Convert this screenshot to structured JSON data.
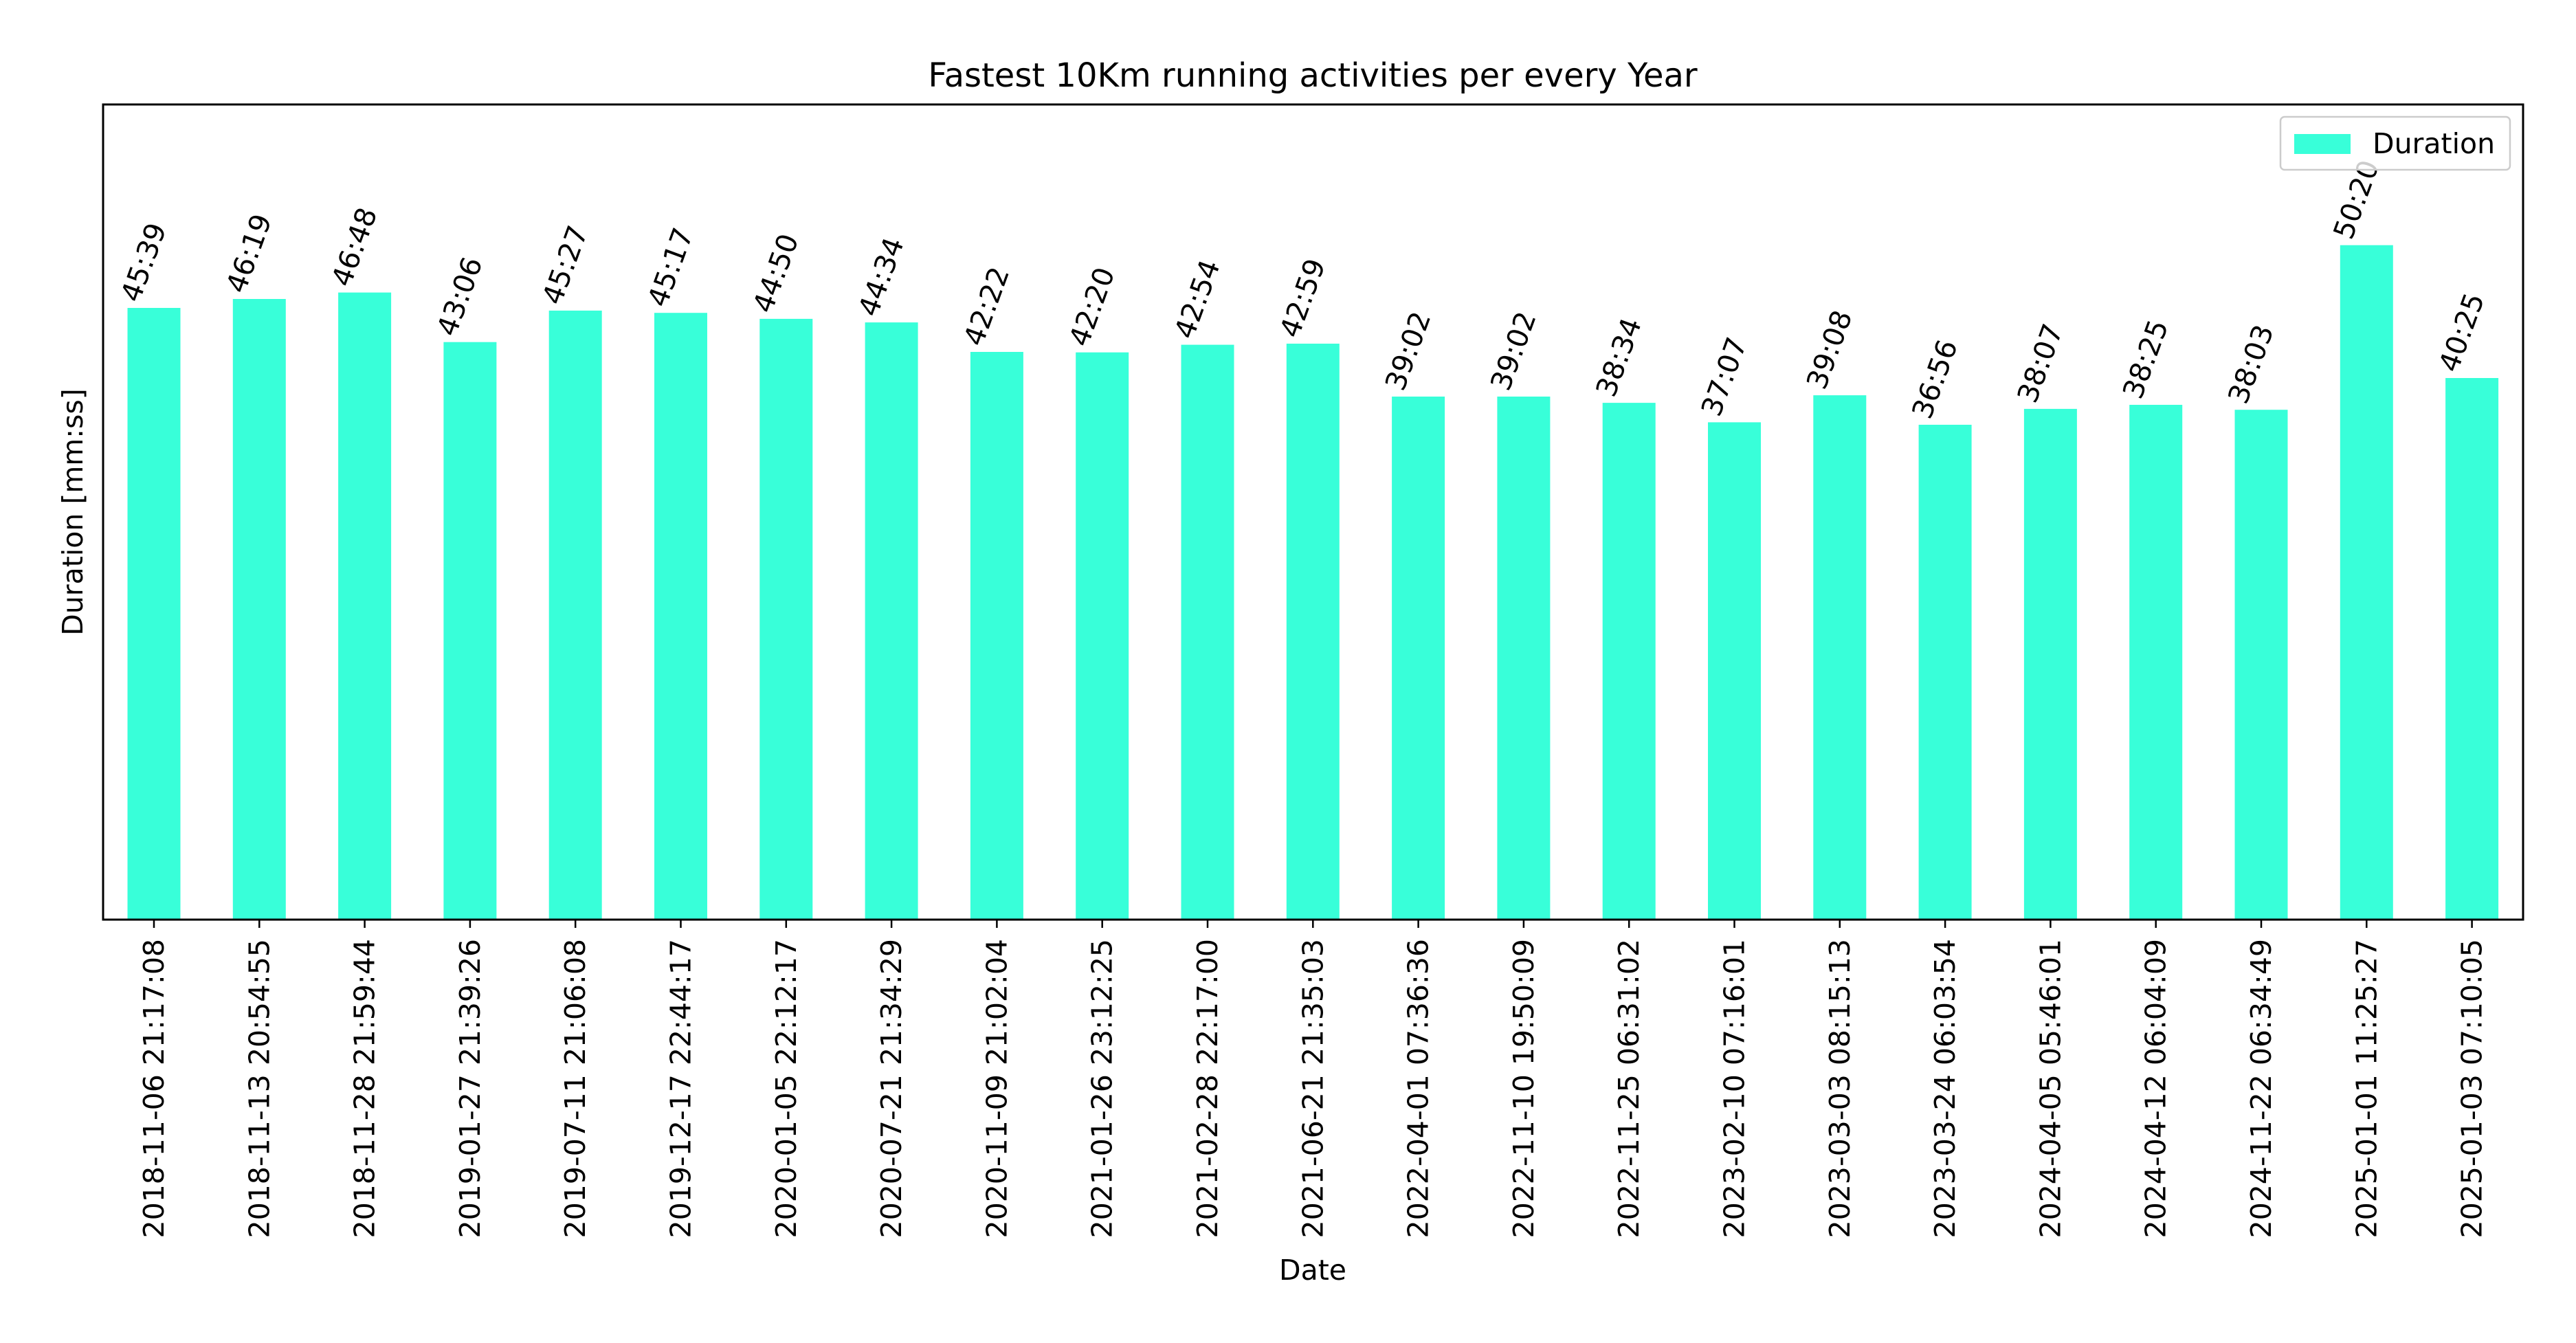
{
  "chart_data": {
    "type": "bar",
    "title": "Fastest 10Km running activities per every Year",
    "xlabel": "Date",
    "ylabel": "Duration [mm:ss]",
    "y_unit": "seconds",
    "ylim": [
      0,
      3650
    ],
    "y_ticks_visible": false,
    "grid": false,
    "legend": {
      "position": "top-right",
      "entries": [
        "Duration"
      ]
    },
    "colors": {
      "bar": "#38ffd9",
      "axis": "#000000",
      "text": "#000000"
    },
    "categories": [
      "2018-11-06 21:17:08",
      "2018-11-13 20:54:55",
      "2018-11-28 21:59:44",
      "2019-01-27 21:39:26",
      "2019-07-11 21:06:08",
      "2019-12-17 22:44:17",
      "2020-01-05 22:12:17",
      "2020-07-21 21:34:29",
      "2020-11-09 21:02:04",
      "2021-01-26 23:12:25",
      "2021-02-28 22:17:00",
      "2021-06-21 21:35:03",
      "2022-04-01 07:36:36",
      "2022-11-10 19:50:09",
      "2022-11-25 06:31:02",
      "2023-02-10 07:16:01",
      "2023-03-03 08:15:13",
      "2023-03-24 06:03:54",
      "2024-04-05 05:46:01",
      "2024-04-12 06:04:09",
      "2024-11-22 06:34:49",
      "2025-01-01 11:25:27",
      "2025-01-03 07:10:05"
    ],
    "series": [
      {
        "name": "Duration",
        "values": [
          2739,
          2779,
          2808,
          2586,
          2727,
          2717,
          2690,
          2674,
          2542,
          2540,
          2574,
          2579,
          2342,
          2342,
          2314,
          2227,
          2348,
          2216,
          2287,
          2305,
          2283,
          3020,
          2425
        ],
        "labels": [
          "45:39",
          "46:19",
          "46:48",
          "43:06",
          "45:27",
          "45:17",
          "44:50",
          "44:34",
          "42:22",
          "42:20",
          "42:54",
          "42:59",
          "39:02",
          "39:02",
          "38:34",
          "37:07",
          "39:08",
          "36:56",
          "38:07",
          "38:25",
          "38:03",
          "50:20",
          "40:25"
        ]
      }
    ]
  }
}
